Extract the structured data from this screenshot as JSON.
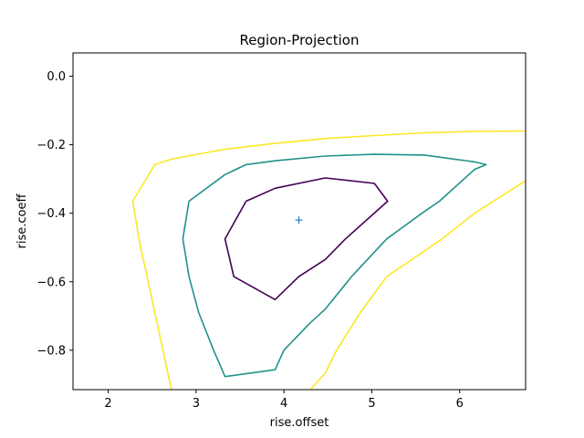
{
  "chart_data": {
    "type": "line",
    "title": "Region-Projection",
    "xlabel": "rise.offset",
    "ylabel": "rise.coeff",
    "xlim": [
      1.6,
      6.75
    ],
    "ylim": [
      -0.915,
      0.068
    ],
    "xticks": [
      2,
      3,
      4,
      5,
      6
    ],
    "yticks": [
      0.0,
      -0.2,
      -0.4,
      -0.6,
      -0.8
    ],
    "xtick_labels": [
      "2",
      "3",
      "4",
      "5",
      "6"
    ],
    "ytick_labels": [
      "0.0",
      "−0.2",
      "−0.4",
      "−0.6",
      "−0.8"
    ],
    "grid": false,
    "marker": {
      "x": 4.17,
      "y": -0.42,
      "symbol": "+",
      "color": "#2c7fb8"
    },
    "series": [
      {
        "color": "#440154",
        "closed": true,
        "points": [
          [
            3.33,
            -0.475
          ],
          [
            3.57,
            -0.365
          ],
          [
            3.9,
            -0.327
          ],
          [
            4.47,
            -0.297
          ],
          [
            5.03,
            -0.313
          ],
          [
            5.18,
            -0.365
          ],
          [
            4.7,
            -0.475
          ],
          [
            4.47,
            -0.535
          ],
          [
            4.17,
            -0.585
          ],
          [
            3.9,
            -0.652
          ],
          [
            3.43,
            -0.585
          ],
          [
            3.33,
            -0.475
          ]
        ]
      },
      {
        "color": "#21918c",
        "closed": true,
        "points": [
          [
            2.85,
            -0.475
          ],
          [
            2.92,
            -0.365
          ],
          [
            3.33,
            -0.287
          ],
          [
            3.57,
            -0.258
          ],
          [
            3.9,
            -0.247
          ],
          [
            4.47,
            -0.233
          ],
          [
            5.03,
            -0.228
          ],
          [
            5.6,
            -0.23
          ],
          [
            6.17,
            -0.25
          ],
          [
            6.3,
            -0.258
          ],
          [
            6.17,
            -0.272
          ],
          [
            5.77,
            -0.365
          ],
          [
            5.57,
            -0.4
          ],
          [
            5.17,
            -0.475
          ],
          [
            4.77,
            -0.585
          ],
          [
            4.47,
            -0.68
          ],
          [
            4.3,
            -0.72
          ],
          [
            4.0,
            -0.8
          ],
          [
            3.9,
            -0.857
          ],
          [
            3.33,
            -0.877
          ],
          [
            3.2,
            -0.8
          ],
          [
            3.03,
            -0.69
          ],
          [
            2.92,
            -0.585
          ],
          [
            2.85,
            -0.475
          ]
        ]
      },
      {
        "color": "#fde725",
        "closed": false,
        "points": [
          [
            6.75,
            -0.16
          ],
          [
            6.17,
            -0.161
          ],
          [
            5.6,
            -0.165
          ],
          [
            5.03,
            -0.173
          ],
          [
            4.47,
            -0.182
          ],
          [
            3.9,
            -0.196
          ],
          [
            3.33,
            -0.213
          ],
          [
            2.72,
            -0.242
          ],
          [
            2.53,
            -0.258
          ],
          [
            2.28,
            -0.365
          ],
          [
            2.35,
            -0.475
          ],
          [
            2.72,
            -0.915
          ]
        ]
      },
      {
        "color": "#fde725",
        "closed": false,
        "points": [
          [
            4.3,
            -0.915
          ],
          [
            4.47,
            -0.867
          ],
          [
            4.6,
            -0.8
          ],
          [
            4.87,
            -0.69
          ],
          [
            5.17,
            -0.585
          ],
          [
            5.8,
            -0.475
          ],
          [
            6.17,
            -0.4
          ],
          [
            6.75,
            -0.305
          ]
        ]
      }
    ]
  }
}
